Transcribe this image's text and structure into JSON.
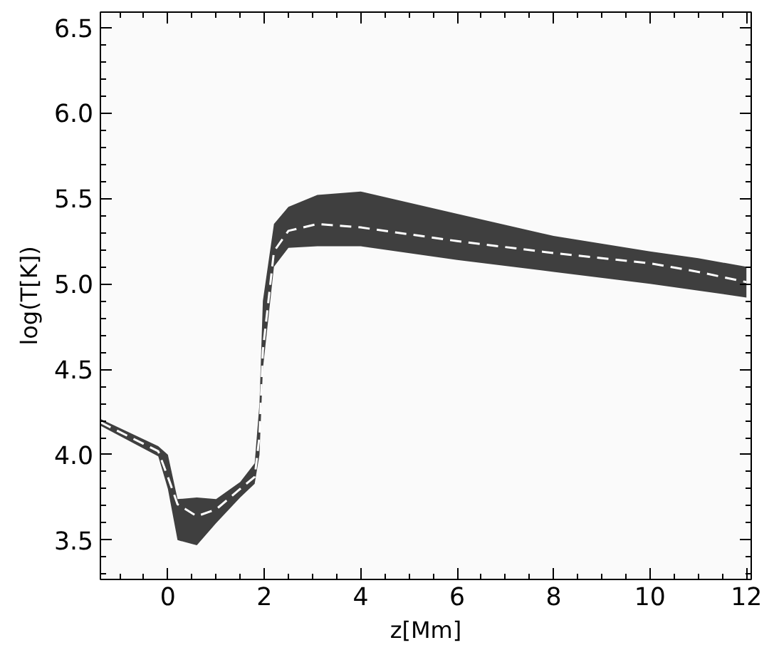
{
  "chart_data": {
    "type": "line",
    "xlabel": "z[Mm]",
    "ylabel": "log(T[K])",
    "xlim": [
      -1.4,
      12.1
    ],
    "ylim": [
      3.27,
      6.59
    ],
    "xticks": [
      0,
      2,
      4,
      6,
      8,
      10,
      12
    ],
    "yticks": [
      3.5,
      {
        "value": 4,
        "label": "4.0"
      },
      4.5,
      {
        "value": 5,
        "label": "5.0"
      },
      5.5,
      {
        "value": 6,
        "label": "6.0"
      },
      6.5
    ],
    "grid": false,
    "line_style": "dashed",
    "series": [
      {
        "color": "#ffffff",
        "x": [
          -1.4,
          -0.2,
          0,
          0.2,
          0.6,
          1.0,
          1.5,
          1.8,
          1.9,
          1.97,
          2.2,
          2.5,
          3.1,
          4,
          6,
          8,
          10,
          11,
          12
        ],
        "values": [
          4.19,
          4.02,
          3.87,
          3.71,
          3.64,
          3.68,
          3.8,
          3.87,
          4.11,
          4.61,
          5.19,
          5.31,
          5.35,
          5.33,
          5.25,
          5.18,
          5.12,
          5.07,
          5.01
        ],
        "lower": [
          4.17,
          3.99,
          3.8,
          3.5,
          3.47,
          3.6,
          3.75,
          3.83,
          4.0,
          4.5,
          5.1,
          5.21,
          5.22,
          5.22,
          5.14,
          5.07,
          5.0,
          4.96,
          4.92
        ],
        "upper": [
          4.21,
          4.05,
          4.0,
          3.74,
          3.75,
          3.74,
          3.84,
          3.95,
          4.3,
          4.9,
          5.35,
          5.45,
          5.52,
          5.54,
          5.41,
          5.28,
          5.19,
          5.15,
          5.1
        ]
      }
    ]
  }
}
